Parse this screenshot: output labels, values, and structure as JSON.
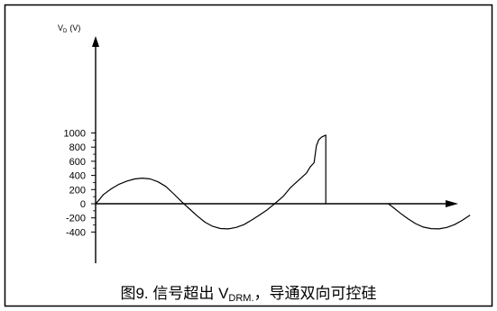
{
  "chart_data": {
    "type": "line",
    "ylabel_main": "V",
    "ylabel_sub": "D",
    "ylabel_unit": "(V)",
    "yticks": [
      1000,
      800,
      600,
      400,
      200,
      0,
      -200,
      -400
    ],
    "ylim": [
      -400,
      1000
    ],
    "grid": false,
    "series": [
      {
        "points": [
          [
            0,
            0
          ],
          [
            5,
            60
          ],
          [
            10,
            130
          ],
          [
            20,
            210
          ],
          [
            30,
            275
          ],
          [
            40,
            320
          ],
          [
            50,
            350
          ],
          [
            60,
            362
          ],
          [
            70,
            350
          ],
          [
            80,
            310
          ],
          [
            90,
            245
          ],
          [
            100,
            140
          ],
          [
            110,
            30
          ],
          [
            120,
            -70
          ],
          [
            130,
            -170
          ],
          [
            140,
            -260
          ],
          [
            150,
            -320
          ],
          [
            160,
            -350
          ],
          [
            170,
            -355
          ],
          [
            180,
            -335
          ],
          [
            190,
            -295
          ],
          [
            200,
            -230
          ],
          [
            210,
            -160
          ],
          [
            220,
            -85
          ],
          [
            230,
            5
          ],
          [
            240,
            100
          ],
          [
            250,
            230
          ],
          [
            260,
            330
          ],
          [
            265,
            380
          ],
          [
            270,
            430
          ],
          [
            275,
            520
          ],
          [
            280,
            580
          ],
          [
            283,
            820
          ],
          [
            286,
            905
          ],
          [
            290,
            945
          ],
          [
            295,
            970
          ],
          [
            295,
            0
          ]
        ]
      },
      {
        "points": [
          [
            375,
            0
          ],
          [
            380,
            -40
          ],
          [
            390,
            -130
          ],
          [
            400,
            -210
          ],
          [
            410,
            -280
          ],
          [
            420,
            -330
          ],
          [
            430,
            -352
          ],
          [
            440,
            -355
          ],
          [
            450,
            -335
          ],
          [
            460,
            -295
          ],
          [
            470,
            -235
          ],
          [
            480,
            -160
          ]
        ]
      }
    ]
  },
  "caption": {
    "prefix": "图9. 信号超出 V",
    "sub": "DRM.",
    "suffix": "，导通双向可控硅"
  }
}
